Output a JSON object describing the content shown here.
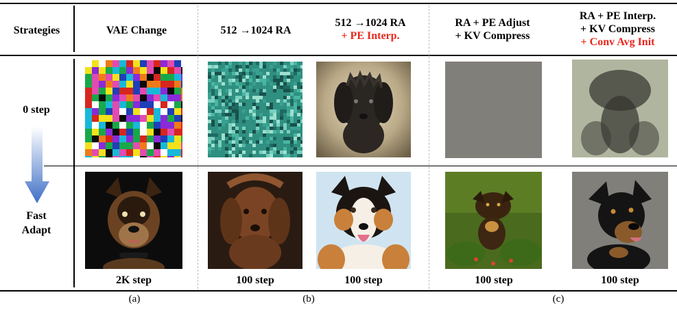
{
  "header": {
    "strategies": "Strategies",
    "col_a": "VAE Change",
    "col_b1": "512 →1024 RA",
    "col_b2_line1": "512 →1024 RA",
    "col_b2_line2": "+ PE Interp.",
    "col_c1_line1": "RA + PE Adjust",
    "col_c1_line2": "+ KV Compress",
    "col_c2_line1": "RA + PE Interp.",
    "col_c2_line2": "+ KV Compress",
    "col_c2_line3": "+ Conv Avg Init"
  },
  "rows": {
    "zero_step": "0 step",
    "fast_adapt_line1": "Fast",
    "fast_adapt_line2": "Adapt"
  },
  "step_captions": [
    "2K step",
    "100 step",
    "100 step",
    "100 step",
    "100 step"
  ],
  "group_labels": [
    "(a)",
    "(b)",
    "(c)"
  ],
  "colors": {
    "highlight_red": "#e8261c",
    "arrow_blue": "#3f6fc6",
    "divider_gray": "#bdbdbd"
  }
}
